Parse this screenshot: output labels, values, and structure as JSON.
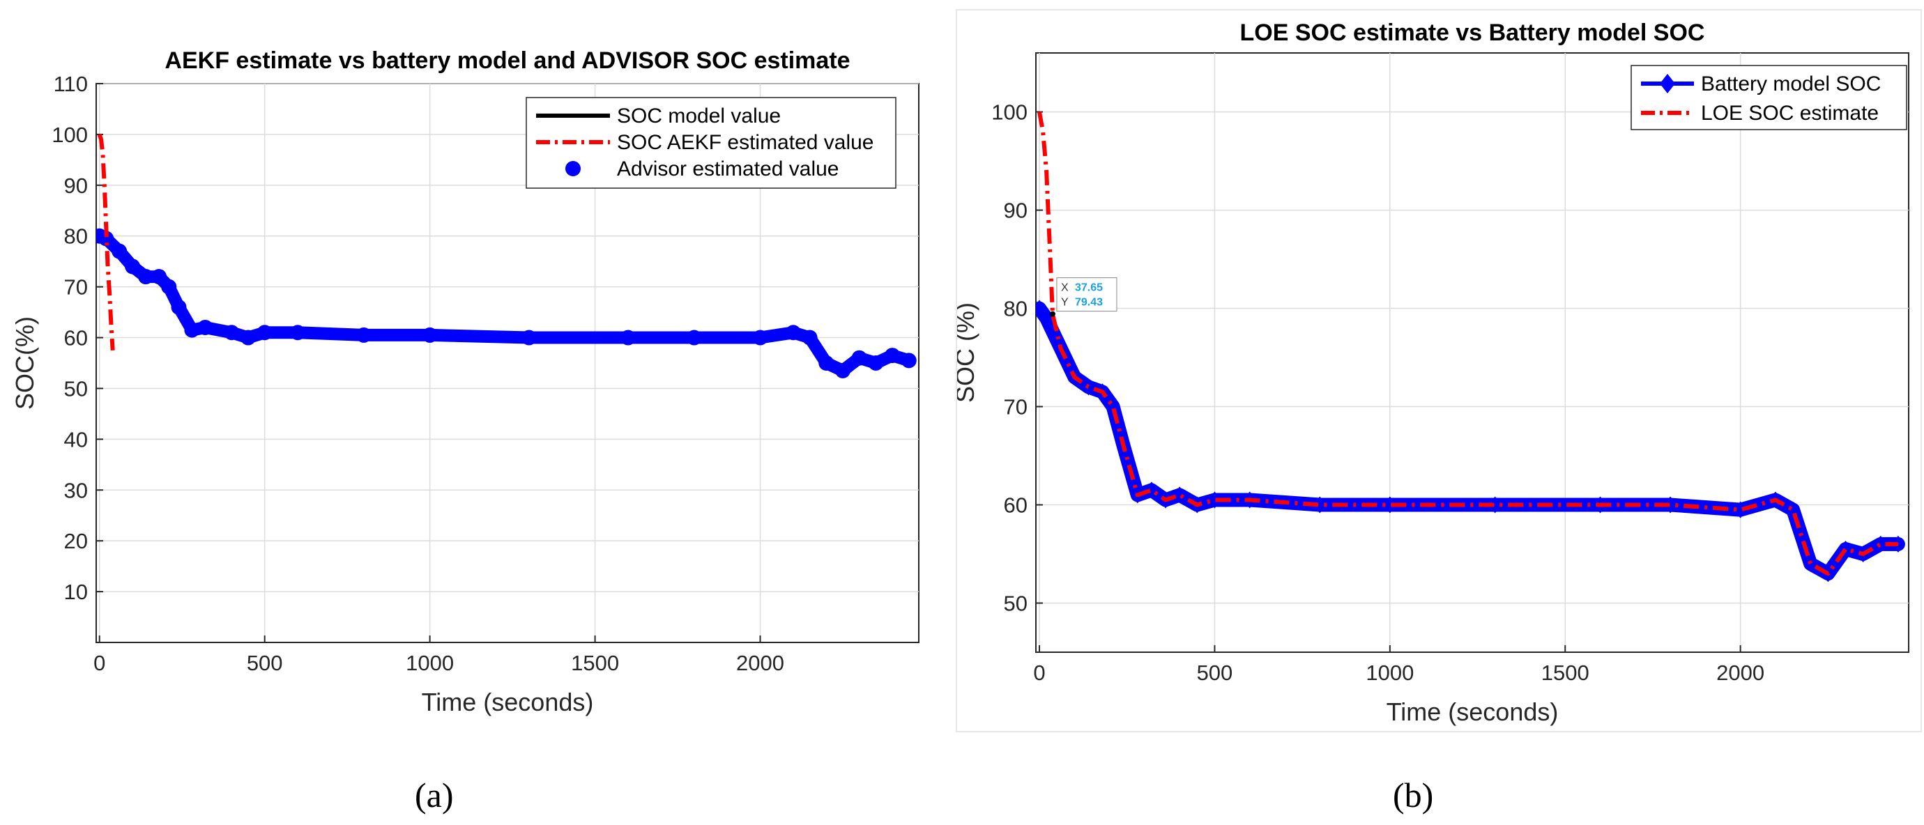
{
  "chart_data": [
    {
      "panel": "a",
      "type": "line",
      "title": "AEKF estimate vs battery model and ADVISOR SOC estimate",
      "xlabel": "Time (seconds)",
      "ylabel": "SOC(%)",
      "xlim": [
        -10,
        2480
      ],
      "ylim": [
        0,
        110
      ],
      "xticks": [
        0,
        500,
        1000,
        1500,
        2000
      ],
      "yticks": [
        10,
        20,
        30,
        40,
        50,
        60,
        70,
        80,
        90,
        100,
        110
      ],
      "grid": true,
      "legend_position": "top-right",
      "legend": [
        "SOC model value",
        "SOC AEKF estimated value",
        "Advisor estimated value"
      ],
      "series": [
        {
          "name": "SOC model value",
          "style": "solid",
          "color": "#000000",
          "x": [
            0,
            20,
            60,
            100,
            140,
            180,
            210,
            240,
            280,
            320,
            400,
            450,
            500,
            600,
            800,
            1000,
            1300,
            1600,
            1800,
            2000,
            2100,
            2150,
            2200,
            2250,
            2300,
            2350,
            2400,
            2450
          ],
          "y": [
            80,
            79.5,
            77,
            74,
            72,
            72,
            70,
            66,
            61.5,
            62,
            61,
            60,
            61,
            61,
            60.5,
            60.5,
            60,
            60,
            60,
            60,
            61,
            60,
            55,
            53.5,
            56,
            55,
            56.5,
            55.5
          ]
        },
        {
          "name": "SOC AEKF estimated value",
          "style": "dash-dot",
          "color": "#ff0000",
          "x": [
            0,
            5,
            10,
            15,
            20,
            25,
            30,
            35,
            40
          ],
          "y": [
            100,
            99,
            96,
            90,
            82,
            74,
            69,
            63,
            57.5
          ]
        },
        {
          "name": "Advisor estimated value",
          "style": "markers",
          "color": "#0000ff",
          "x": [
            0,
            20,
            60,
            100,
            140,
            180,
            210,
            240,
            280,
            320,
            400,
            450,
            500,
            600,
            800,
            1000,
            1300,
            1600,
            1800,
            2000,
            2100,
            2150,
            2200,
            2250,
            2300,
            2350,
            2400,
            2450
          ],
          "y": [
            80,
            79.5,
            77,
            74,
            72,
            72,
            70,
            66,
            61.5,
            62,
            61,
            60,
            61,
            61,
            60.5,
            60.5,
            60,
            60,
            60,
            60,
            61,
            60,
            55,
            53.5,
            56,
            55,
            56.5,
            55.5
          ]
        }
      ]
    },
    {
      "panel": "b",
      "type": "line",
      "title": "LOE  SOC  estimate vs Battery model SOC",
      "xlabel": "Time (seconds)",
      "ylabel": "SOC (%)",
      "xlim": [
        -10,
        2480
      ],
      "ylim": [
        45,
        106
      ],
      "xticks": [
        0,
        500,
        1000,
        1500,
        2000
      ],
      "yticks": [
        50,
        60,
        70,
        80,
        90,
        100
      ],
      "grid": true,
      "legend_position": "top-right",
      "legend": [
        "Battery model SOC",
        "LOE SOC estimate"
      ],
      "datatip": {
        "x_label": "X",
        "x_value": "37.65",
        "y_label": "Y",
        "y_value": "79.43",
        "x": 37.65,
        "y": 79.43
      },
      "series": [
        {
          "name": "Battery model SOC",
          "style": "thick-line-diamond",
          "color": "#0000ff",
          "x": [
            0,
            20,
            60,
            100,
            140,
            180,
            210,
            240,
            280,
            320,
            360,
            400,
            450,
            500,
            600,
            800,
            1000,
            1300,
            1600,
            1800,
            2000,
            2100,
            2150,
            2200,
            2250,
            2300,
            2350,
            2400,
            2450
          ],
          "y": [
            80,
            79,
            76,
            73,
            72,
            71.5,
            70,
            66,
            61,
            61.5,
            60.5,
            61,
            60,
            60.5,
            60.5,
            60,
            60,
            60,
            60,
            60,
            59.5,
            60.5,
            59.5,
            54,
            53,
            55.5,
            55,
            56,
            56
          ]
        },
        {
          "name": "LOE SOC estimate",
          "style": "dash-dot",
          "color": "#ff0000",
          "x": [
            0,
            10,
            20,
            30,
            37.65,
            60,
            100,
            140,
            180,
            210,
            240,
            280,
            320,
            360,
            400,
            450,
            500,
            600,
            800,
            1000,
            1300,
            1600,
            1800,
            2000,
            2100,
            2150,
            2200,
            2250,
            2300,
            2350,
            2400,
            2450
          ],
          "y": [
            100,
            98,
            94,
            86,
            79.43,
            76,
            73,
            72,
            71.5,
            70,
            66,
            61,
            61.5,
            60.5,
            61,
            60,
            60.5,
            60.5,
            60,
            60,
            60,
            60,
            60,
            59.5,
            60.5,
            59.5,
            54,
            53,
            55.5,
            55,
            56,
            56
          ]
        }
      ]
    }
  ],
  "captions": [
    "(a)",
    "(b)"
  ],
  "colors": {
    "model": "#000000",
    "aekf": "#ff0000",
    "advisor": "#0000ff",
    "datatip_value": "#1a9fe0"
  }
}
